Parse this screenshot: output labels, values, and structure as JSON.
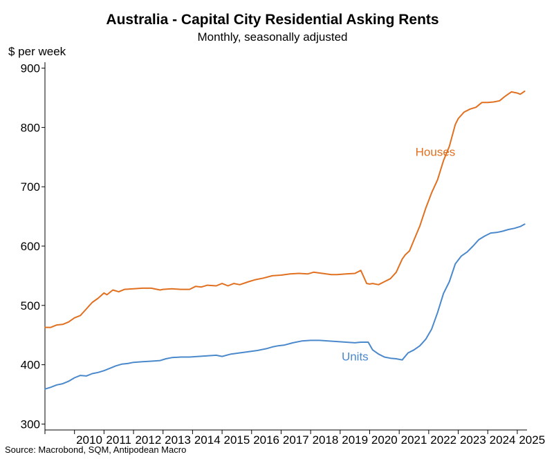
{
  "title": "Australia - Capital City Residential Asking Rents",
  "subtitle": "Monthly, seasonally adjusted",
  "ylabel": "$ per week",
  "source": "Source: Macrobond, SQM, Antipodean Macro",
  "chart_data": {
    "type": "line",
    "title": "Australia - Capital City Residential Asking Rents",
    "subtitle": "Monthly, seasonally adjusted",
    "xlabel": "",
    "ylabel": "$ per week",
    "xlim": [
      2009.0,
      2025.33
    ],
    "ylim": [
      290,
      910
    ],
    "yticks": [
      300,
      400,
      500,
      600,
      700,
      800,
      900
    ],
    "xticks": [
      2010,
      2011,
      2012,
      2013,
      2014,
      2015,
      2016,
      2017,
      2018,
      2019,
      2020,
      2021,
      2022,
      2023,
      2024,
      2025
    ],
    "xtick_labels": [
      "2010",
      "2011",
      "2012",
      "2013",
      "2014",
      "2015",
      "2016",
      "2017",
      "2018",
      "2019",
      "2020",
      "2021",
      "2022",
      "2023",
      "2024",
      "2025"
    ],
    "grid": false,
    "legend": "inline labels",
    "series": [
      {
        "name": "Houses",
        "color": "#E07020",
        "x": [
          2009.0,
          2009.2,
          2009.4,
          2009.6,
          2009.8,
          2010.0,
          2010.2,
          2010.4,
          2010.6,
          2010.8,
          2011.0,
          2011.1,
          2011.3,
          2011.5,
          2011.7,
          2012.0,
          2012.3,
          2012.6,
          2012.9,
          2013.0,
          2013.3,
          2013.6,
          2013.9,
          2014.1,
          2014.3,
          2014.5,
          2014.8,
          2015.0,
          2015.2,
          2015.4,
          2015.6,
          2015.9,
          2016.1,
          2016.4,
          2016.7,
          2017.0,
          2017.3,
          2017.6,
          2017.9,
          2018.1,
          2018.4,
          2018.7,
          2018.9,
          2019.2,
          2019.5,
          2019.7,
          2019.9,
          2020.0,
          2020.1,
          2020.3,
          2020.5,
          2020.7,
          2020.9,
          2021.1,
          2021.2,
          2021.35,
          2021.5,
          2021.7,
          2021.9,
          2022.1,
          2022.3,
          2022.5,
          2022.7,
          2022.9,
          2023.0,
          2023.2,
          2023.4,
          2023.6,
          2023.8,
          2024.0,
          2024.2,
          2024.4,
          2024.6,
          2024.8,
          2025.0,
          2025.1,
          2025.25
        ],
        "values": [
          463,
          463,
          467,
          468,
          472,
          479,
          483,
          494,
          505,
          512,
          521,
          518,
          526,
          523,
          527,
          528,
          529,
          529,
          526,
          527,
          528,
          527,
          527,
          532,
          531,
          534,
          533,
          537,
          533,
          537,
          535,
          540,
          543,
          546,
          550,
          551,
          553,
          554,
          553,
          556,
          554,
          552,
          552,
          553,
          554,
          559,
          537,
          536,
          537,
          535,
          540,
          545,
          556,
          578,
          585,
          592,
          610,
          634,
          664,
          690,
          712,
          744,
          768,
          805,
          815,
          826,
          831,
          834,
          842,
          842,
          843,
          845,
          853,
          860,
          858,
          856,
          861
        ]
      },
      {
        "name": "Units",
        "color": "#4A88CC",
        "x": [
          2009.0,
          2009.2,
          2009.4,
          2009.6,
          2009.8,
          2010.0,
          2010.2,
          2010.4,
          2010.6,
          2010.8,
          2011.0,
          2011.2,
          2011.4,
          2011.6,
          2011.8,
          2012.0,
          2012.3,
          2012.6,
          2012.9,
          2013.1,
          2013.3,
          2013.6,
          2013.9,
          2014.2,
          2014.5,
          2014.8,
          2015.0,
          2015.3,
          2015.6,
          2015.9,
          2016.2,
          2016.5,
          2016.7,
          2016.9,
          2017.1,
          2017.4,
          2017.7,
          2018.0,
          2018.3,
          2018.6,
          2018.9,
          2019.2,
          2019.5,
          2019.7,
          2019.85,
          2019.95,
          2020.1,
          2020.3,
          2020.5,
          2020.7,
          2020.9,
          2021.1,
          2021.3,
          2021.5,
          2021.7,
          2021.9,
          2022.1,
          2022.3,
          2022.5,
          2022.7,
          2022.9,
          2023.1,
          2023.3,
          2023.5,
          2023.7,
          2023.9,
          2024.1,
          2024.3,
          2024.5,
          2024.7,
          2024.9,
          2025.1,
          2025.25
        ],
        "values": [
          359,
          362,
          366,
          368,
          372,
          378,
          382,
          381,
          385,
          387,
          390,
          394,
          398,
          401,
          402,
          404,
          405,
          406,
          407,
          410,
          412,
          413,
          413,
          414,
          415,
          416,
          414,
          418,
          420,
          422,
          424,
          427,
          430,
          432,
          433,
          437,
          440,
          441,
          441,
          440,
          439,
          438,
          437,
          438,
          438,
          438,
          425,
          418,
          413,
          411,
          410,
          408,
          420,
          425,
          432,
          443,
          460,
          488,
          520,
          540,
          570,
          583,
          590,
          600,
          611,
          617,
          622,
          623,
          625,
          628,
          630,
          633,
          637
        ]
      }
    ],
    "annotations": [
      {
        "text": "Houses",
        "series": "Houses",
        "x": 2021.55,
        "y": 752
      },
      {
        "text": "Units",
        "series": "Units",
        "x": 2019.05,
        "y": 407
      }
    ]
  }
}
